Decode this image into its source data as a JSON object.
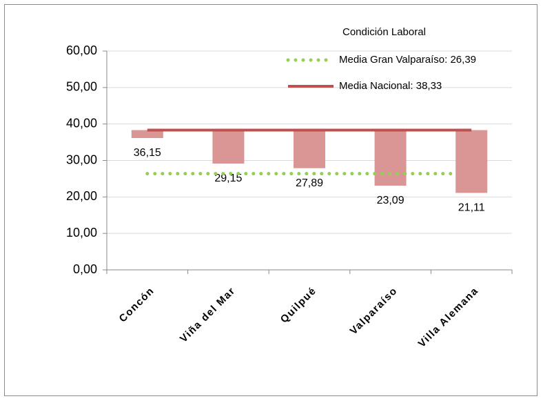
{
  "chart_data": {
    "type": "floating-bar",
    "legend_title": "Condición Laboral",
    "categories": [
      "Concón",
      "Viña del Mar",
      "Quilpué",
      "Valparaíso",
      "Villa Alemana"
    ],
    "base": 38.33,
    "values": [
      36.15,
      29.15,
      27.89,
      23.09,
      21.11
    ],
    "value_labels": [
      "36,15",
      "29,15",
      "27,89",
      "23,09",
      "21,11"
    ],
    "color": "#d99694",
    "reference_lines": [
      {
        "name": "Media Gran Valparaíso: 26,39",
        "value": 26.39,
        "color": "#92d050",
        "style": "dotted"
      },
      {
        "name": "Media Nacional: 38,33",
        "value": 38.33,
        "color": "#c0504d",
        "style": "solid"
      }
    ],
    "ylim": [
      0,
      60
    ],
    "yticks": [
      {
        "value": 0,
        "label": "0,00"
      },
      {
        "value": 10,
        "label": "10,00"
      },
      {
        "value": 20,
        "label": "20,00"
      },
      {
        "value": 30,
        "label": "30,00"
      },
      {
        "value": 40,
        "label": "40,00"
      },
      {
        "value": 50,
        "label": "50,00"
      },
      {
        "value": 60,
        "label": "60,00"
      }
    ],
    "grid": true
  }
}
